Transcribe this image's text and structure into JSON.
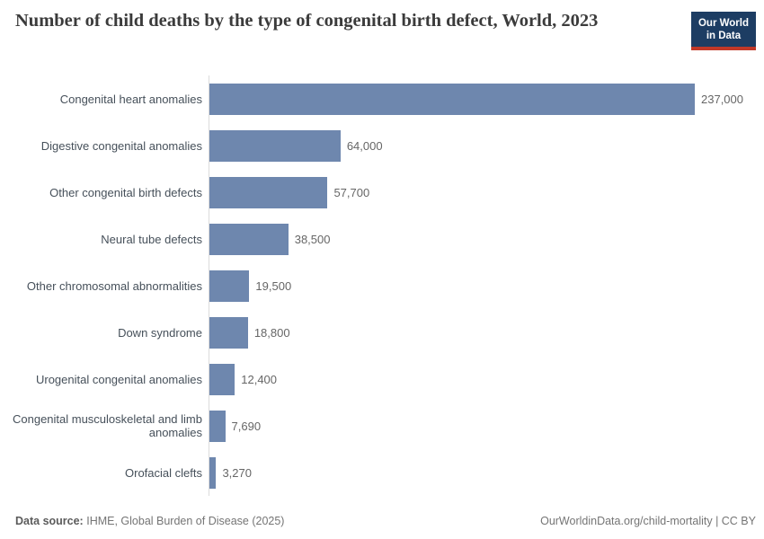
{
  "header": {
    "title": "Number of child deaths by the type of congenital birth defect, World, 2023",
    "logo_line1": "Our World",
    "logo_line2": "in Data"
  },
  "chart_data": {
    "type": "bar",
    "orientation": "horizontal",
    "title": "Number of child deaths by the type of congenital birth defect, World, 2023",
    "categories": [
      "Congenital heart anomalies",
      "Digestive congenital anomalies",
      "Other congenital birth defects",
      "Neural tube defects",
      "Other chromosomal abnormalities",
      "Down syndrome",
      "Urogenital congenital anomalies",
      "Congenital musculoskeletal and limb anomalies",
      "Orofacial clefts"
    ],
    "values": [
      237000,
      64000,
      57700,
      38500,
      19500,
      18800,
      12400,
      7690,
      3270
    ],
    "value_labels": [
      "237,000",
      "64,000",
      "57,700",
      "38,500",
      "19,500",
      "18,800",
      "12,400",
      "7,690",
      "3,270"
    ],
    "xlim": [
      0,
      237000
    ],
    "grid": false,
    "legend": "none",
    "bar_color": "#6e87ae"
  },
  "footer": {
    "source_label": "Data source:",
    "source_text": "IHME, Global Burden of Disease (2025)",
    "attribution": "OurWorldinData.org/child-mortality | CC BY"
  },
  "colors": {
    "bar": "#6e87ae",
    "axis_line": "#dcdcdc",
    "title_text": "#3b3b3b",
    "category_label": "#46505a",
    "value_label": "#666666",
    "footer_text": "#757575",
    "logo_bg": "#1d3d63",
    "logo_underline": "#c13828"
  }
}
